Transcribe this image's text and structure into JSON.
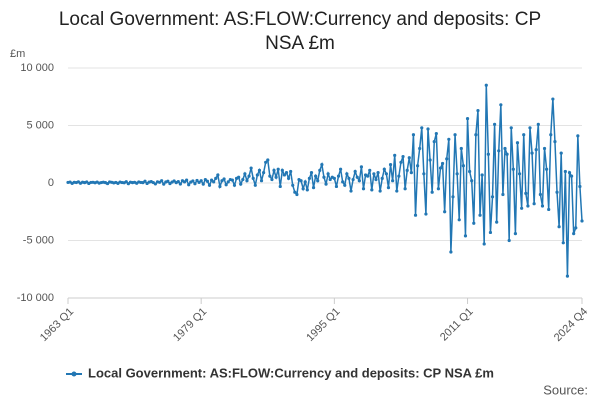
{
  "chart_data": {
    "type": "line",
    "title": "Local Government: AS:FLOW:Currency and deposits: CP NSA £m",
    "y_unit": "£m",
    "source": "Source:",
    "categories": [
      "1963 Q1",
      null,
      null,
      null,
      null,
      null,
      null,
      null,
      null,
      null,
      null,
      null,
      null,
      null,
      null,
      null,
      null,
      null,
      null,
      null,
      null,
      null,
      null,
      null,
      null,
      null,
      null,
      null,
      null,
      null,
      null,
      null,
      null,
      null,
      null,
      null,
      null,
      null,
      null,
      null,
      null,
      null,
      null,
      null,
      null,
      null,
      null,
      null,
      null,
      null,
      null,
      null,
      null,
      null,
      null,
      null,
      null,
      null,
      null,
      null,
      null,
      null,
      null,
      null,
      "1979 Q1",
      null,
      null,
      null,
      null,
      null,
      null,
      null,
      null,
      null,
      null,
      null,
      null,
      null,
      null,
      null,
      null,
      null,
      null,
      null,
      null,
      null,
      null,
      null,
      null,
      null,
      null,
      null,
      null,
      null,
      null,
      null,
      null,
      null,
      null,
      null,
      null,
      null,
      null,
      null,
      null,
      null,
      null,
      null,
      null,
      null,
      null,
      null,
      null,
      null,
      null,
      null,
      null,
      null,
      null,
      null,
      null,
      null,
      null,
      null,
      null,
      null,
      null,
      null,
      "1995 Q1",
      null,
      null,
      null,
      null,
      null,
      null,
      null,
      null,
      null,
      null,
      null,
      null,
      null,
      null,
      null,
      null,
      null,
      null,
      null,
      null,
      null,
      null,
      null,
      null,
      null,
      null,
      null,
      null,
      null,
      null,
      null,
      null,
      null,
      null,
      null,
      null,
      null,
      null,
      null,
      null,
      null,
      null,
      null,
      null,
      null,
      null,
      null,
      null,
      null,
      null,
      null,
      null,
      null,
      null,
      null,
      null,
      null,
      null,
      null,
      null,
      null,
      null,
      null,
      "2011 Q1",
      null,
      null,
      null,
      null,
      null,
      null,
      null,
      null,
      null,
      null,
      null,
      null,
      null,
      null,
      null,
      null,
      null,
      null,
      null,
      null,
      null,
      null,
      null,
      null,
      null,
      null,
      null,
      null,
      null,
      null,
      null,
      null,
      null,
      null,
      null,
      null,
      null,
      null,
      null,
      null,
      null,
      null,
      null,
      null,
      null,
      null,
      null,
      null,
      null,
      null,
      null,
      null,
      null,
      null,
      "2024 Q4"
    ],
    "series": [
      {
        "name": "Local Government: AS:FLOW:Currency and deposits: CP NSA £m",
        "color": "#2277b4",
        "values": [
          50,
          80,
          -30,
          60,
          40,
          100,
          -20,
          70,
          30,
          90,
          -40,
          50,
          60,
          20,
          80,
          -10,
          40,
          70,
          30,
          -50,
          90,
          60,
          10,
          50,
          -30,
          80,
          40,
          20,
          110,
          -60,
          70,
          30,
          60,
          -20,
          90,
          50,
          30,
          150,
          -40,
          80,
          120,
          40,
          -80,
          100,
          60,
          200,
          -100,
          90,
          150,
          -50,
          80,
          180,
          30,
          120,
          -90,
          200,
          100,
          250,
          -150,
          80,
          180,
          -60,
          220,
          50,
          200,
          -100,
          300,
          150,
          -200,
          250,
          100,
          400,
          700,
          -300,
          200,
          350,
          -150,
          100,
          300,
          250,
          -200,
          400,
          500,
          -100,
          300,
          800,
          200,
          600,
          1300,
          400,
          -200,
          700,
          1100,
          200,
          900,
          1800,
          2000,
          600,
          300,
          1100,
          500,
          1200,
          -300,
          1100,
          700,
          900,
          400,
          1000,
          -200,
          -800,
          -1000,
          300,
          200,
          -500,
          100,
          -600,
          400,
          900,
          -400,
          600,
          200,
          1100,
          1600,
          500,
          -100,
          800,
          300,
          500,
          400,
          -300,
          600,
          1200,
          100,
          -200,
          800,
          400,
          -700,
          300,
          1000,
          500,
          200,
          1400,
          -500,
          700,
          600,
          1100,
          -600,
          800,
          300,
          900,
          -700,
          400,
          1200,
          800,
          -400,
          1600,
          200,
          2400,
          -700,
          600,
          1800,
          2300,
          -500,
          1100,
          2200,
          900,
          4200,
          -2800,
          1500,
          3000,
          4800,
          800,
          -2700,
          4700,
          2000,
          -800,
          3600,
          4300,
          -500,
          1300,
          1700,
          -2500,
          2100,
          3800,
          -6000,
          -1200,
          4200,
          800,
          -3200,
          3000,
          1500,
          -4600,
          5600,
          1000,
          200,
          -3500,
          4200,
          6300,
          -2800,
          700,
          -5300,
          8500,
          2500,
          -4300,
          -1200,
          5100,
          -3400,
          2800,
          6800,
          -1000,
          3000,
          2500,
          -5000,
          4800,
          1200,
          -4400,
          3500,
          800,
          -2200,
          4200,
          -900,
          -2000,
          4800,
          2600,
          -1800,
          2900,
          5100,
          -1000,
          -2000,
          3000,
          1200,
          -2300,
          4200,
          7300,
          3600,
          -800,
          -3800,
          2600,
          -5200,
          1000,
          -8100,
          900,
          600,
          -4400,
          -3900,
          4100,
          -300,
          -3300
        ]
      }
    ],
    "ylim": [
      -10000,
      10000
    ],
    "yticks": [
      {
        "value": -10000,
        "label": "-10 000"
      },
      {
        "value": -5000,
        "label": "-5 000"
      },
      0,
      {
        "value": 5000,
        "label": "5 000"
      },
      {
        "value": 10000,
        "label": "10 000"
      }
    ],
    "grid": true,
    "legend": "bottom"
  }
}
